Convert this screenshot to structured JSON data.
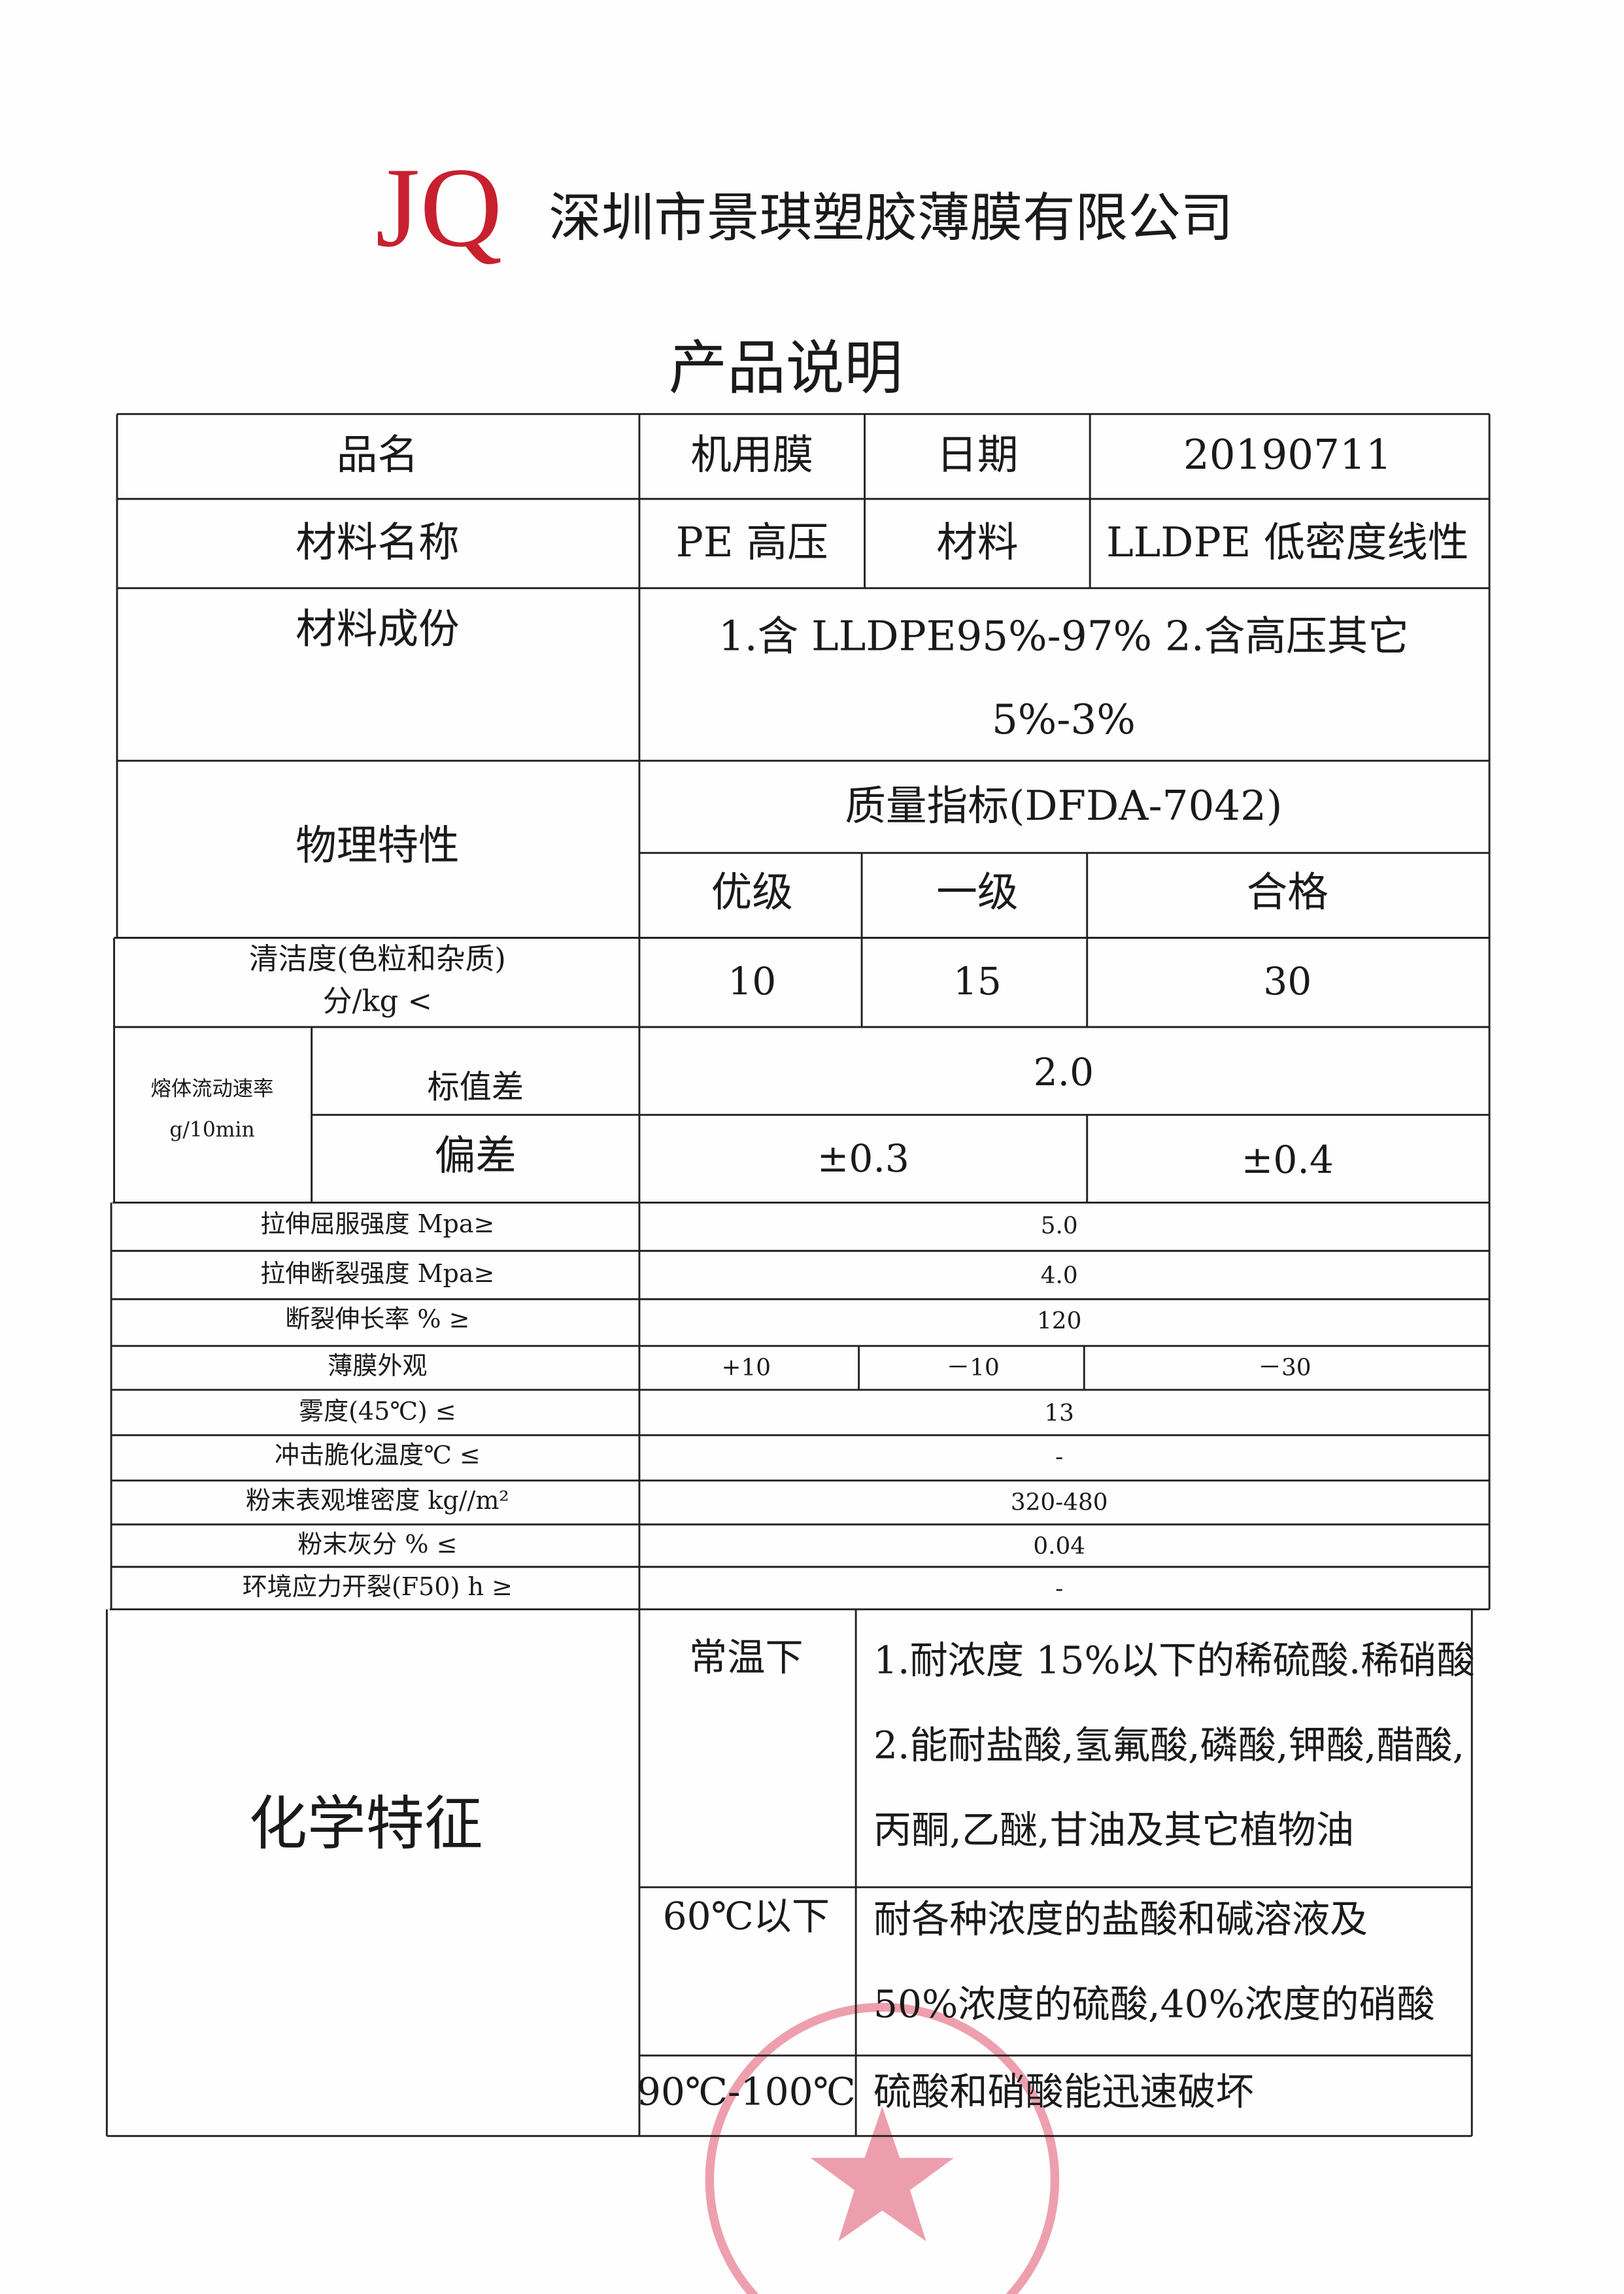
{
  "header": {
    "logo": "JQ",
    "company": "深圳市景琪塑胶薄膜有限公司"
  },
  "title": "产品说明",
  "info": [
    [
      "品名",
      "机用膜",
      "日期",
      "20190711"
    ],
    [
      "材料名称",
      "PE 高压",
      "材料",
      "LLDPE 低密度线性"
    ]
  ],
  "composition": {
    "label": "材料成份",
    "lines": [
      "1.含 LLDPE95%-97%    2.含高压其它",
      "5%-3%"
    ]
  },
  "physical": {
    "label": "物理特性",
    "standard": "质量指标(DFDA-7042)",
    "grades": [
      "优级",
      "一级",
      "合格"
    ],
    "cleanliness": {
      "label": [
        "清洁度(色粒和杂质)",
        "分/kg    <"
      ],
      "values": [
        "10",
        "15",
        "30"
      ]
    },
    "melt_flow": {
      "label": [
        "熔体流动速率",
        "g/10min"
      ],
      "nominal_label": "标值差",
      "nominal": "2.0",
      "deviation_label": "偏差",
      "deviation": [
        "±0.3",
        "±0.4"
      ]
    },
    "rows": [
      {
        "label": "拉伸屈服强度    Mpa≥",
        "values": [
          "5.0"
        ]
      },
      {
        "label": "拉伸断裂强度    Mpa≥",
        "values": [
          "4.0"
        ]
      },
      {
        "label": "断裂伸长率    %  ≥",
        "values": [
          "120"
        ]
      },
      {
        "label": "薄膜外观",
        "values": [
          "+10",
          "－10",
          "－30"
        ]
      },
      {
        "label": "雾度(45℃)          ≤",
        "values": [
          "13"
        ]
      },
      {
        "label": "冲击脆化温度℃    ≤",
        "values": [
          "-"
        ]
      },
      {
        "label": "粉末表观堆密度    kg//m²",
        "values": [
          "320-480"
        ]
      },
      {
        "label": "粉末灰分    %    ≤",
        "values": [
          "0.04"
        ]
      },
      {
        "label": "环境应力开裂(F50)    h    ≥",
        "values": [
          "-"
        ]
      }
    ]
  },
  "chemistry": {
    "label": "化学特征",
    "conditions": [
      {
        "condition": "常温下",
        "lines": [
          "1.耐浓度 15%以下的稀硫酸.稀硝酸",
          "2.能耐盐酸,氢氟酸,磷酸,钾酸,醋酸,",
          "丙酮,乙醚,甘油及其它植物油"
        ]
      },
      {
        "condition": "60℃以下",
        "lines": [
          "耐各种浓度的盐酸和碱溶液及",
          "50%浓度的硫酸,40%浓度的硝酸"
        ]
      },
      {
        "condition": "90℃-100℃",
        "lines": [
          "硫酸和硝酸能迅速破坏"
        ]
      }
    ]
  }
}
